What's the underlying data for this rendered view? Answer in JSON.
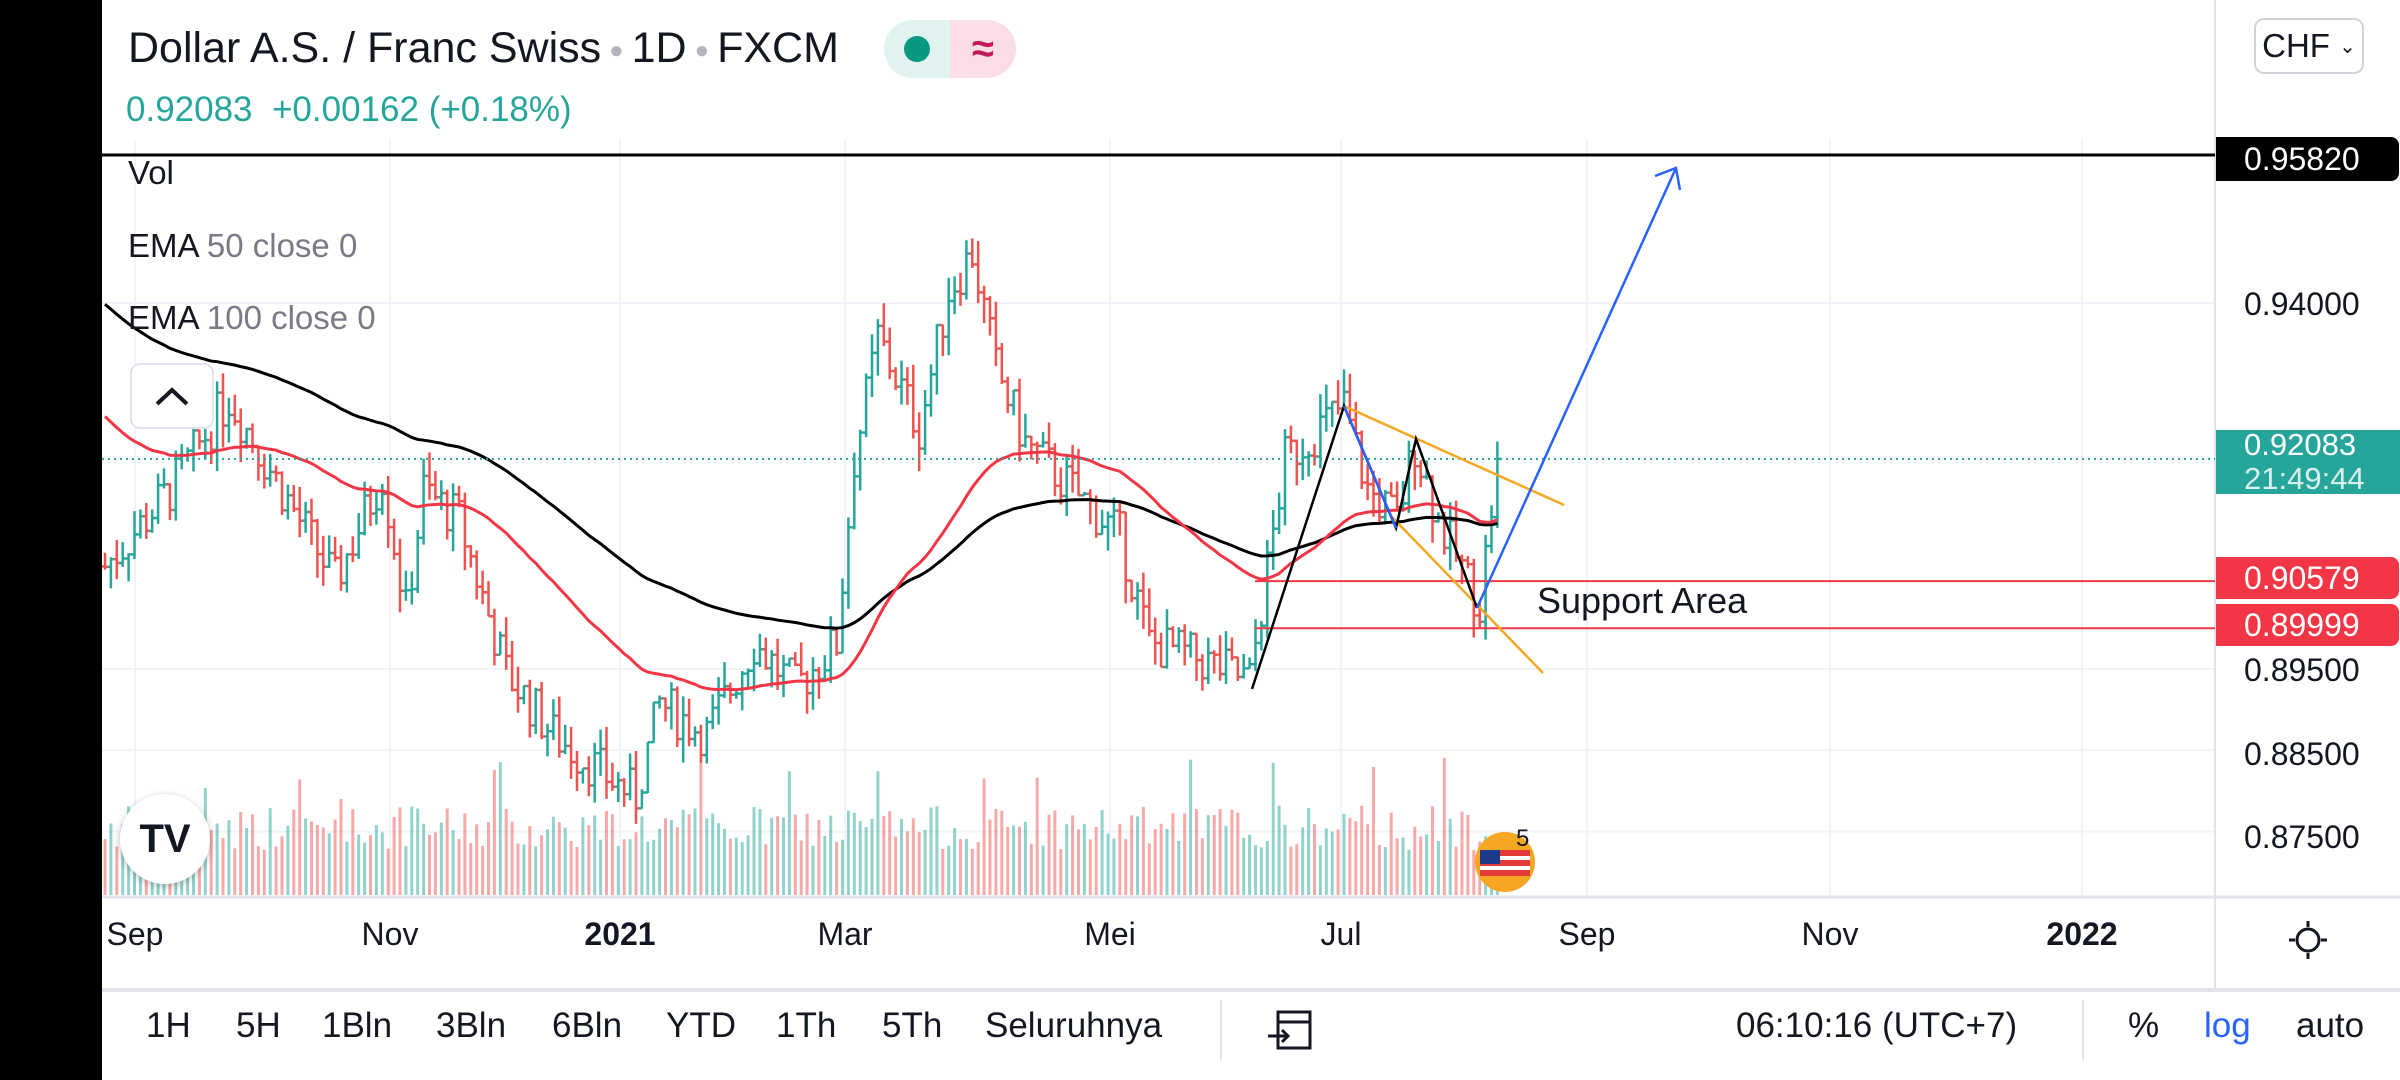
{
  "header": {
    "symbol": "Dollar A.S. / Franc Swiss",
    "interval": "1D",
    "exchange": "FXCM",
    "price": "0.92083",
    "change": "+0.00162",
    "change_pct": "(+0.18%)",
    "market_status_icon": "market-open-dot",
    "approx_icon": "≈"
  },
  "legend": {
    "vol": "Vol",
    "ema50_name": "EMA",
    "ema50_params": "50 close 0",
    "ema100_name": "EMA",
    "ema100_params": "100 close 0"
  },
  "currency": "CHF",
  "price_axis": {
    "ticks": [
      "0.94000",
      "0.89500",
      "0.88500",
      "0.87500"
    ],
    "tags": {
      "target": "0.95820",
      "last": "0.92083",
      "countdown": "21:49:44",
      "level1": "0.90579",
      "level2": "0.89999"
    }
  },
  "time_axis": [
    "Sep",
    "Nov",
    "2021",
    "Mar",
    "Mei",
    "Jul",
    "Sep",
    "Nov",
    "2022"
  ],
  "annotation": "Support Area",
  "toolbar": {
    "ranges": [
      "1H",
      "5H",
      "1Bln",
      "3Bln",
      "6Bln",
      "YTD",
      "1Th",
      "5Th",
      "Seluruhnya"
    ],
    "clock": "06:10:16 (UTC+7)",
    "percent": "%",
    "log": "log",
    "auto": "auto"
  },
  "colors": {
    "up": "#26a69a",
    "down": "#ef5350",
    "ema50": "#f23645",
    "ema100": "#000000",
    "accent": "#2962ff"
  },
  "chart_data": {
    "type": "candlestick",
    "ylim": [
      0.87,
      0.965
    ],
    "levels": [
      0.9582,
      0.90579,
      0.89999
    ],
    "last": 0.92083,
    "ema_start": {
      "ema50": 0.9268,
      "ema100": 0.9405
    },
    "key_closes": [
      [
        0,
        0.9076
      ],
      [
        11,
        0.917
      ],
      [
        21,
        0.9283
      ],
      [
        30,
        0.917
      ],
      [
        39,
        0.9057
      ],
      [
        47,
        0.9189
      ],
      [
        51,
        0.902
      ],
      [
        54,
        0.917
      ],
      [
        60,
        0.9133
      ],
      [
        68,
        0.8945
      ],
      [
        76,
        0.8869
      ],
      [
        86,
        0.8812
      ],
      [
        90,
        0.8794
      ],
      [
        94,
        0.8907
      ],
      [
        102,
        0.8869
      ],
      [
        110,
        0.8982
      ],
      [
        117,
        0.8926
      ],
      [
        124,
        0.8982
      ],
      [
        127,
        0.9208
      ],
      [
        131,
        0.9358
      ],
      [
        138,
        0.9245
      ],
      [
        143,
        0.9415
      ],
      [
        147,
        0.9462
      ],
      [
        151,
        0.9321
      ],
      [
        156,
        0.9227
      ],
      [
        164,
        0.917
      ],
      [
        172,
        0.9113
      ],
      [
        177,
        0.8982
      ],
      [
        185,
        0.8963
      ],
      [
        194,
        0.8935
      ],
      [
        200,
        0.9208
      ],
      [
        210,
        0.9274
      ],
      [
        214,
        0.917
      ],
      [
        219,
        0.9133
      ],
      [
        222,
        0.9227
      ],
      [
        226,
        0.9133
      ],
      [
        233,
        0.9029
      ],
      [
        236,
        0.92083
      ]
    ]
  }
}
